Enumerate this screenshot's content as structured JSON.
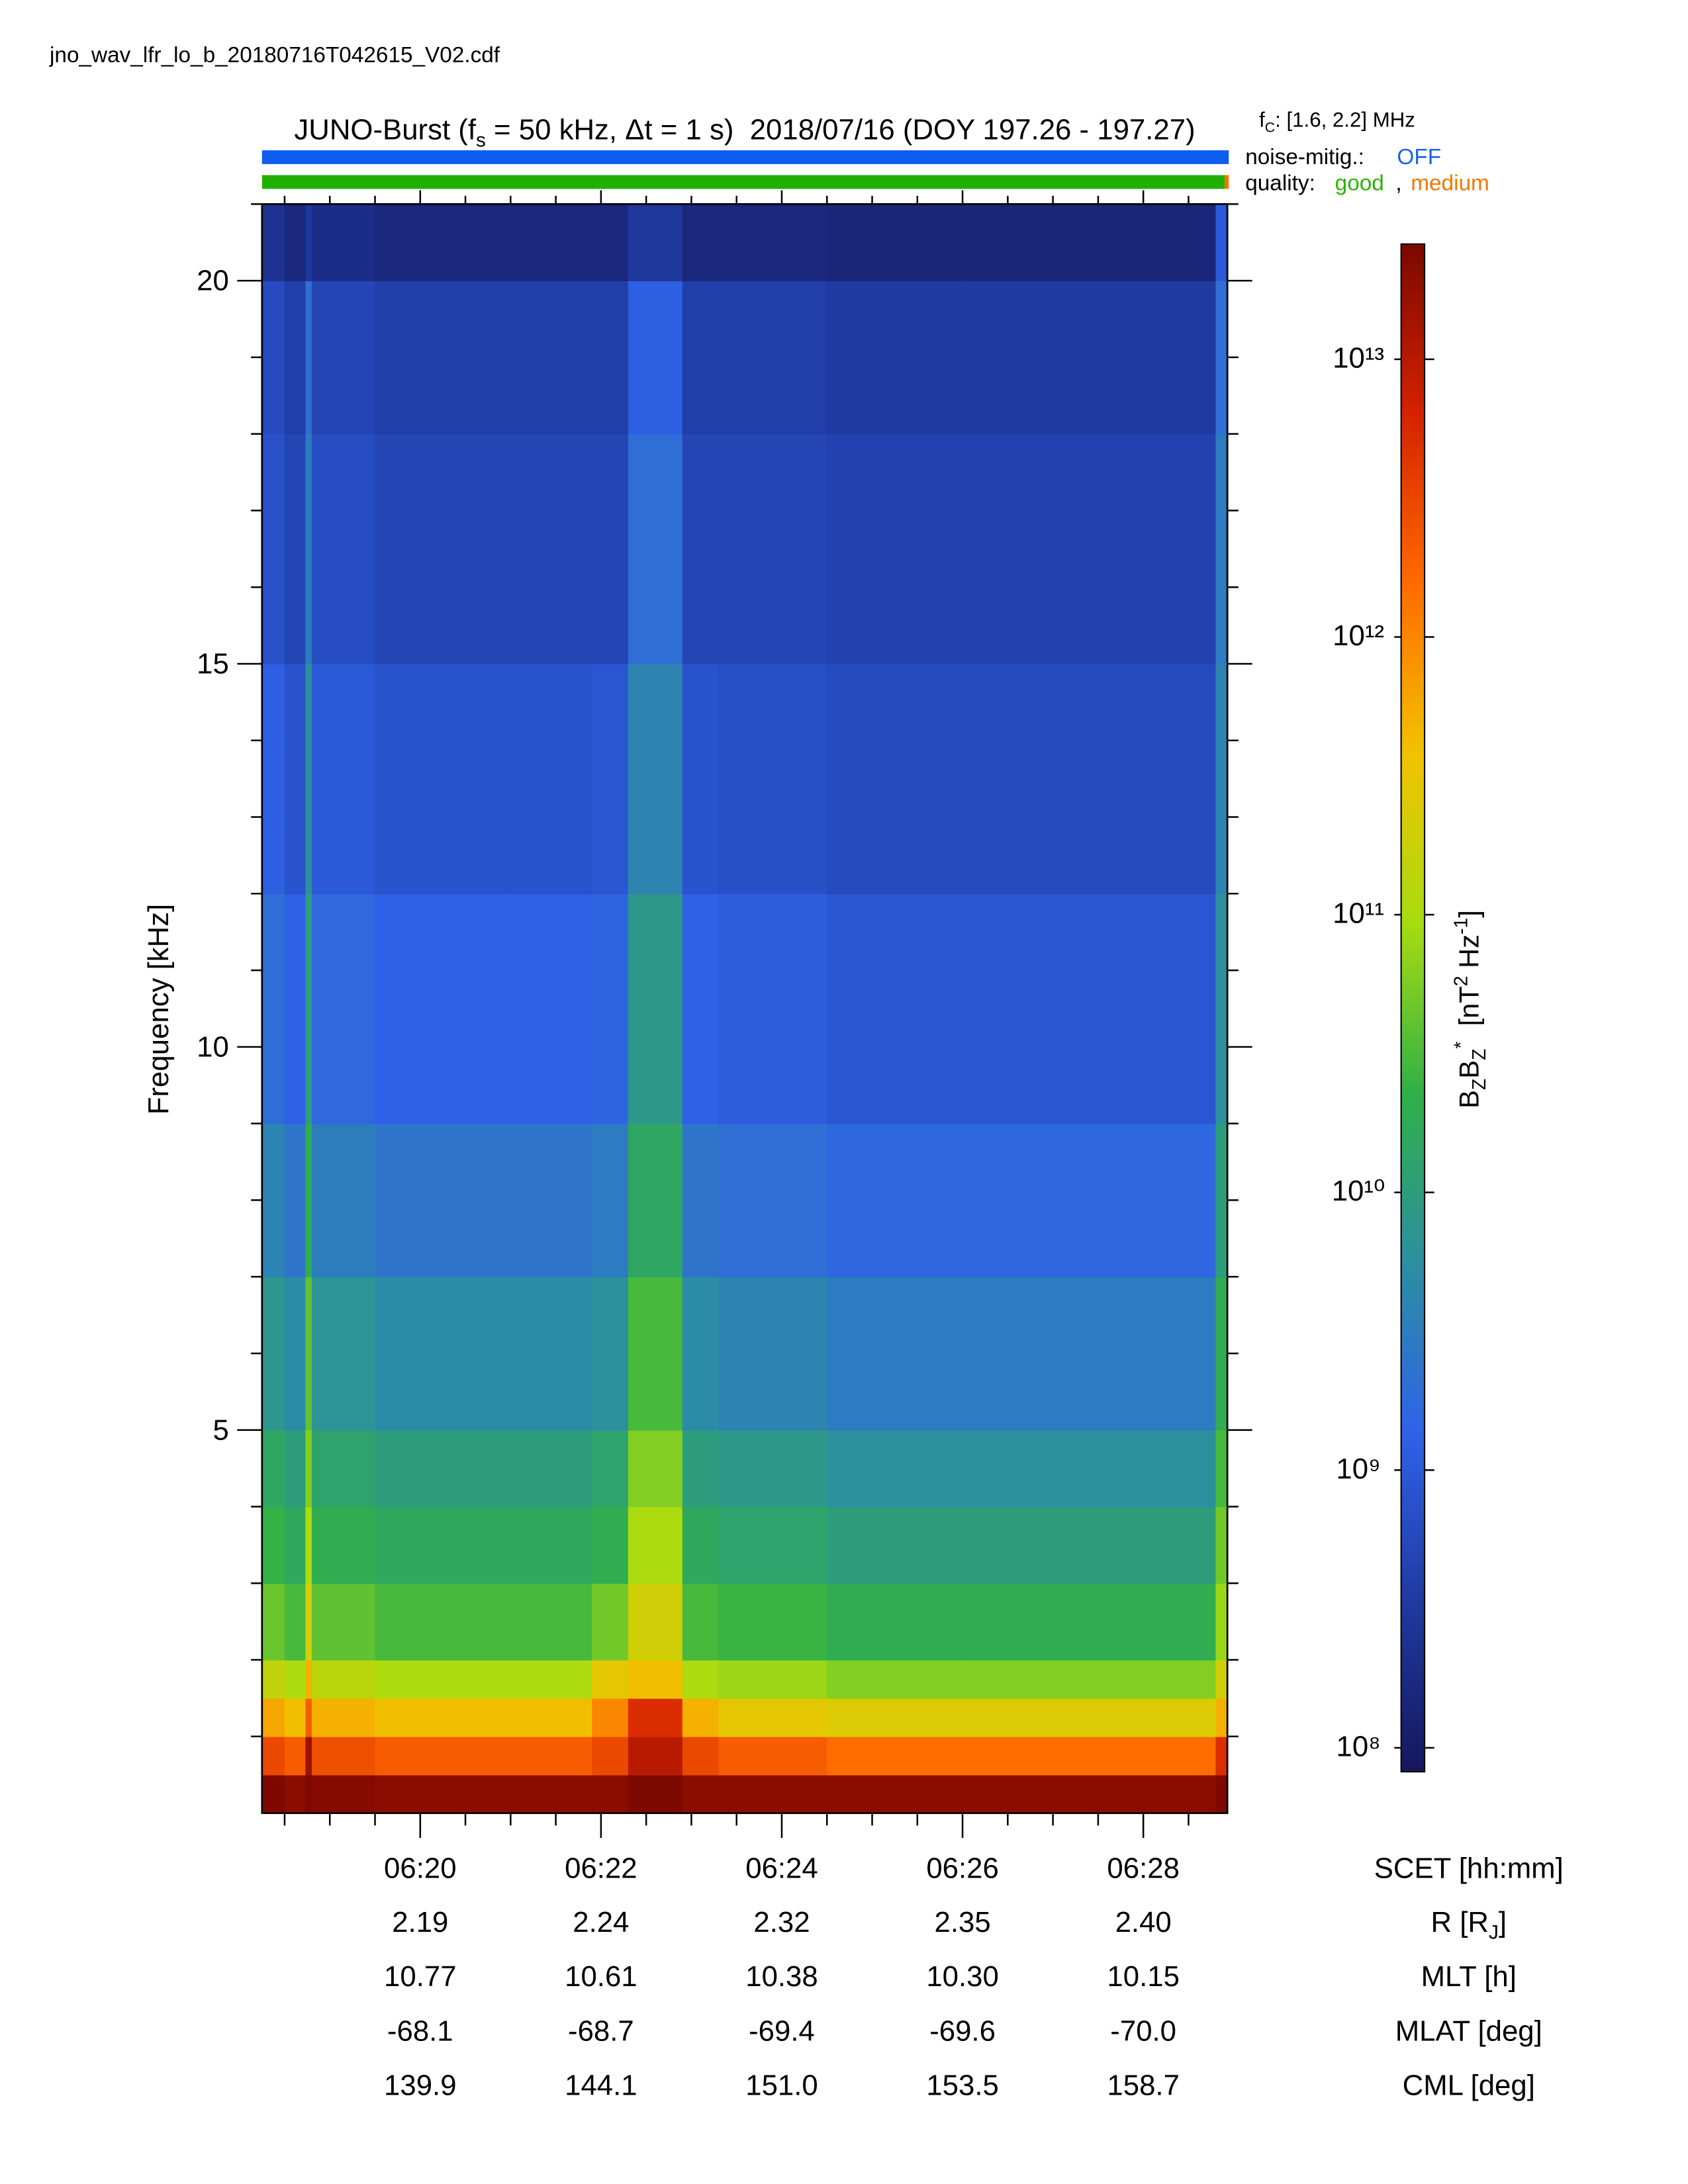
{
  "file_name": "jno_wav_lfr_lo_b_20180716T042615_V02.cdf",
  "header": {
    "fc": [
      {
        "text": "f"
      },
      {
        "text": "C",
        "shift": "sub"
      },
      {
        "text": ": [1.6, 2.2] MHz"
      }
    ],
    "noise_label": "noise-mitig.:",
    "noise_value": "OFF",
    "quality_label": "quality:",
    "quality_good": "good",
    "quality_sep": ",",
    "quality_medium": "medium"
  },
  "chart_data": {
    "type": "spectrogram",
    "title": [
      {
        "text": "JUNO-Burst (f"
      },
      {
        "text": "s",
        "shift": "sub"
      },
      {
        "text": " = 50 kHz, Δt = 1 s)  2018/07/16 (DOY 197.26 - 197.27)"
      }
    ],
    "y_label": "Frequency [kHz]",
    "x_label": "SCET [hh:mm]",
    "colorbar_label": [
      {
        "text": "B"
      },
      {
        "text": "Z",
        "shift": "sub"
      },
      {
        "text": "B"
      },
      {
        "text": "Z",
        "shift": "sub"
      },
      {
        "text": "*",
        "shift": "sup"
      },
      {
        "text": "  [nT"
      },
      {
        "text": "2",
        "shift": "sup"
      },
      {
        "text": " Hz"
      },
      {
        "text": "-1",
        "shift": "sup"
      },
      {
        "text": "]"
      }
    ],
    "xlim": [
      18.25,
      28.93
    ],
    "xticks": [
      {
        "value": 20,
        "label": "06:20"
      },
      {
        "value": 22,
        "label": "06:22"
      },
      {
        "value": 24,
        "label": "06:24"
      },
      {
        "value": 26,
        "label": "06:26"
      },
      {
        "value": 28,
        "label": "06:28"
      }
    ],
    "xminor_ticks": [
      18.5,
      19,
      19.5,
      20.5,
      21,
      21.5,
      22.5,
      23,
      23.5,
      24.5,
      25,
      25.5,
      26.5,
      27,
      27.5,
      28.5
    ],
    "ylim": [
      0,
      21
    ],
    "yticks": [
      5,
      10,
      15,
      20
    ],
    "yminor_ticks": [
      1,
      2,
      3,
      4,
      6,
      7,
      8,
      9,
      11,
      12,
      13,
      14,
      16,
      17,
      18,
      19,
      21
    ],
    "clim": [
      82000000.0,
      26000000000000.0
    ],
    "log_color": true,
    "cticks": [
      {
        "value": 100000000.0,
        "label": "10⁸"
      },
      {
        "value": 1000000000.0,
        "label": "10⁹"
      },
      {
        "value": 10000000000.0,
        "label": "10¹⁰"
      },
      {
        "value": 100000000000.0,
        "label": "10¹¹"
      },
      {
        "value": 1000000000000.0,
        "label": "10¹²"
      },
      {
        "value": 10000000000000.0,
        "label": "10¹³"
      }
    ],
    "colormap": [
      "#16175e",
      "#1f3aa0",
      "#2f62e8",
      "#2c8fa0",
      "#30b048",
      "#a8dc10",
      "#f2c200",
      "#ff6a00",
      "#d42200",
      "#7a0800"
    ],
    "x_edges": [
      18.25,
      18.5,
      18.73,
      18.8,
      19.5,
      21,
      21.9,
      22.3,
      22.9,
      23.3,
      24.5,
      26,
      27.5,
      28.8,
      28.93
    ],
    "y_edges": [
      0,
      0.5,
      1,
      1.5,
      2,
      3,
      4,
      5,
      7,
      9,
      12,
      15,
      18,
      20,
      21
    ],
    "z": [
      [
        24000000000000.0,
        3000000000000.0,
        600000000000.0,
        150000000000.0,
        45000000000.0,
        24000000000.0,
        15000000000.0,
        7500000000.0,
        3800000000.0,
        2000000000.0,
        1200000000.0,
        750000000.0,
        600000000.0,
        240000000.0
      ],
      [
        20000000000000.0,
        2000000000000.0,
        400000000000.0,
        100000000000.0,
        30000000000.0,
        16000000000.0,
        10000000000.0,
        5000000000.0,
        2500000000.0,
        1300000000.0,
        800000000.0,
        500000000.0,
        400000000.0,
        160000000.0
      ],
      [
        25000000000000.0,
        15000000000000.0,
        2000000000000.0,
        500000000000.0,
        200000000000.0,
        100000000000.0,
        60000000000.0,
        40000000000.0,
        20000000000.0,
        10000000000.0,
        6000000000.0,
        3000000000.0,
        2000000000.0,
        300000000.0
      ],
      [
        22000000000000.0,
        2600000000000.0,
        500000000000.0,
        130000000000.0,
        40000000000.0,
        20000000000.0,
        13000000000.0,
        6500000000.0,
        3200000000.0,
        1700000000.0,
        1000000000.0,
        650000000.0,
        500000000.0,
        200000000.0
      ],
      [
        20000000000000.0,
        2000000000000.0,
        400000000000.0,
        100000000000.0,
        30000000000.0,
        16000000000.0,
        10000000000.0,
        5000000000.0,
        2500000000.0,
        1300000000.0,
        800000000.0,
        500000000.0,
        400000000.0,
        160000000.0
      ],
      [
        20000000000000.0,
        2000000000000.0,
        400000000000.0,
        100000000000.0,
        30000000000.0,
        16000000000.0,
        10000000000.0,
        5000000000.0,
        2500000000.0,
        1300000000.0,
        800000000.0,
        500000000.0,
        400000000.0,
        160000000.0
      ],
      [
        20000000000000.0,
        3000000000000.0,
        1000000000000.0,
        300000000000.0,
        50000000000.0,
        20000000000.0,
        13000000000.0,
        6000000000.0,
        3000000000.0,
        1500000000.0,
        900000000.0,
        500000000.0,
        400000000.0,
        160000000.0
      ],
      [
        25000000000000.0,
        10000000000000.0,
        5000000000000.0,
        400000000000.0,
        200000000000.0,
        100000000000.0,
        60000000000.0,
        30000000000.0,
        15000000000.0,
        8000000000.0,
        4000000000.0,
        2000000000.0,
        1200000000.0,
        300000000.0
      ],
      [
        20000000000000.0,
        3000000000000.0,
        500000000000.0,
        100000000000.0,
        30000000000.0,
        16000000000.0,
        10000000000.0,
        5000000000.0,
        2500000000.0,
        1300000000.0,
        800000000.0,
        500000000.0,
        400000000.0,
        160000000.0
      ],
      [
        20000000000000.0,
        2000000000000.0,
        300000000000.0,
        80000000000.0,
        25000000000.0,
        13000000000.0,
        8000000000.0,
        4000000000.0,
        2000000000.0,
        1100000000.0,
        700000000.0,
        500000000.0,
        400000000.0,
        160000000.0
      ],
      [
        20000000000000.0,
        1500000000000.0,
        250000000000.0,
        60000000000.0,
        20000000000.0,
        10000000000.0,
        6000000000.0,
        3000000000.0,
        1600000000.0,
        900000000.0,
        600000000.0,
        450000000.0,
        350000000.0,
        150000000.0
      ],
      [
        20000000000000.0,
        1500000000000.0,
        250000000000.0,
        60000000000.0,
        20000000000.0,
        10000000000.0,
        6000000000.0,
        3000000000.0,
        1600000000.0,
        900000000.0,
        600000000.0,
        450000000.0,
        350000000.0,
        150000000.0
      ],
      [
        20000000000000.0,
        1500000000000.0,
        250000000000.0,
        60000000000.0,
        20000000000.0,
        10000000000.0,
        6000000000.0,
        3000000000.0,
        1600000000.0,
        900000000.0,
        600000000.0,
        450000000.0,
        350000000.0,
        150000000.0
      ],
      [
        25000000000000.0,
        5000000000000.0,
        500000000000.0,
        200000000000.0,
        80000000000.0,
        50000000000.0,
        30000000000.0,
        20000000000.0,
        10000000000.0,
        6000000000.0,
        4000000000.0,
        3000000000.0,
        2000000000.0,
        1000000000.0
      ]
    ],
    "ephemeris": [
      {
        "label": [
          {
            "text": "R [R"
          },
          {
            "text": "J",
            "shift": "sub"
          },
          {
            "text": "]"
          }
        ],
        "values": [
          "2.19",
          "2.24",
          "2.32",
          "2.35",
          "2.40"
        ]
      },
      {
        "label": [
          {
            "text": "MLT [h]"
          }
        ],
        "values": [
          "10.77",
          "10.61",
          "10.38",
          "10.30",
          "10.15"
        ]
      },
      {
        "label": [
          {
            "text": "MLAT [deg]"
          }
        ],
        "values": [
          "-68.1",
          "-68.7",
          "-69.4",
          "-69.6",
          "-70.0"
        ]
      },
      {
        "label": [
          {
            "text": "CML [deg]"
          }
        ],
        "values": [
          "139.9",
          "144.1",
          "151.0",
          "153.5",
          "158.7"
        ]
      }
    ]
  }
}
